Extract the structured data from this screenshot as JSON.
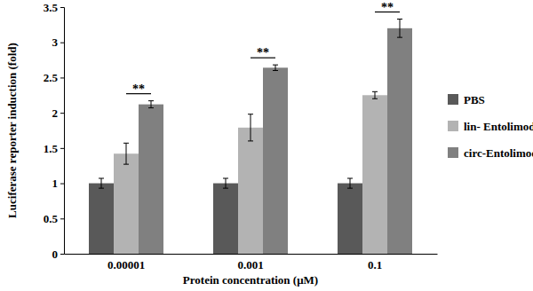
{
  "chart_data": {
    "type": "bar",
    "x_label": "Protein concentration (μM)",
    "y_label": "Luciferase reporter induction (fold)",
    "categories": [
      "0.00001",
      "0.001",
      "0.1"
    ],
    "series": [
      {
        "name": "PBS",
        "color": "#595959",
        "values": [
          1,
          1,
          1
        ],
        "errors": [
          0.07,
          0.07,
          0.07
        ]
      },
      {
        "name": "lin- Entolimod",
        "color": "#b3b3b3",
        "values": [
          1.42,
          1.79,
          2.25
        ],
        "errors": [
          0.15,
          0.19,
          0.05
        ]
      },
      {
        "name": "circ-Entolimod",
        "color": "#808080",
        "values": [
          2.12,
          2.64,
          3.2
        ],
        "errors": [
          0.05,
          0.04,
          0.13
        ]
      }
    ],
    "annotations": [
      "**",
      "**",
      "**"
    ],
    "ylim": [
      0,
      3.5
    ],
    "yticks": [
      0,
      0.5,
      1,
      1.5,
      2,
      2.5,
      3,
      3.5
    ],
    "grid": false,
    "legend": "right"
  }
}
